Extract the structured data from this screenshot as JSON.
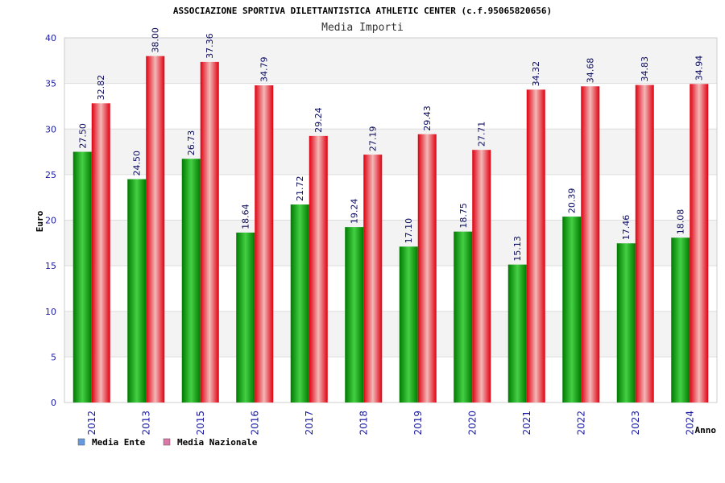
{
  "chart_data": {
    "type": "bar",
    "title": "ASSOCIAZIONE SPORTIVA DILETTANTISTICA ATHLETIC CENTER (c.f.95065820656)",
    "subtitle": "Media Importi",
    "xlabel": "Anno",
    "ylabel": "Euro",
    "ylim": [
      0,
      40
    ],
    "yticks": [
      "0",
      "5",
      "10",
      "15",
      "20",
      "25",
      "30",
      "35",
      "40"
    ],
    "categories": [
      "2012",
      "2013",
      "2015",
      "2016",
      "2017",
      "2018",
      "2019",
      "2020",
      "2021",
      "2022",
      "2023",
      "2024"
    ],
    "series": [
      {
        "name": "Media Ente",
        "color": "#00a000",
        "legend_color": "#6699dd",
        "values": [
          27.5,
          24.5,
          26.73,
          18.64,
          21.72,
          19.24,
          17.1,
          18.75,
          15.13,
          20.39,
          17.46,
          18.08
        ],
        "labels": [
          "27.50",
          "24.50",
          "26.73",
          "18.64",
          "21.72",
          "19.24",
          "17.10",
          "18.75",
          "15.13",
          "20.39",
          "17.46",
          "18.08"
        ]
      },
      {
        "name": "Media Nazionale",
        "color": "#ff0000",
        "legend_color": "#dd77aa",
        "values": [
          32.82,
          38.0,
          37.36,
          34.79,
          29.24,
          27.19,
          29.43,
          27.71,
          34.32,
          34.68,
          34.83,
          34.94
        ],
        "labels": [
          "32.82",
          "38.00",
          "37.36",
          "34.79",
          "29.24",
          "27.19",
          "29.43",
          "27.71",
          "34.32",
          "34.68",
          "34.83",
          "34.94"
        ]
      }
    ],
    "grid": true,
    "legend_position": "bottom-left"
  }
}
